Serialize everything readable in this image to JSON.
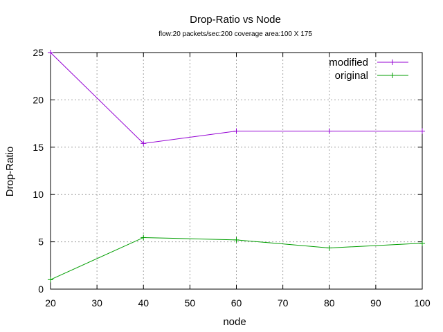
{
  "chart_data": {
    "type": "line",
    "title": "Drop-Ratio vs Node",
    "subtitle": "flow:20  packets/sec:200  coverage area:100 X 175",
    "xlabel": "node",
    "ylabel": "Drop-Ratio",
    "xlim": [
      20,
      100
    ],
    "ylim": [
      0,
      25
    ],
    "xticks": [
      20,
      30,
      40,
      50,
      60,
      70,
      80,
      90,
      100
    ],
    "yticks": [
      0,
      5,
      10,
      15,
      20,
      25
    ],
    "grid": true,
    "legend_position": "top-right",
    "series": [
      {
        "name": "modified",
        "color": "#9400d3",
        "x": [
          20,
          40,
          60,
          80,
          100
        ],
        "y": [
          25,
          15.4,
          16.7,
          16.7,
          16.7
        ]
      },
      {
        "name": "original",
        "color": "#009e00",
        "x": [
          20,
          40,
          60,
          80,
          100
        ],
        "y": [
          1.0,
          5.45,
          5.2,
          4.35,
          4.85
        ]
      }
    ]
  }
}
